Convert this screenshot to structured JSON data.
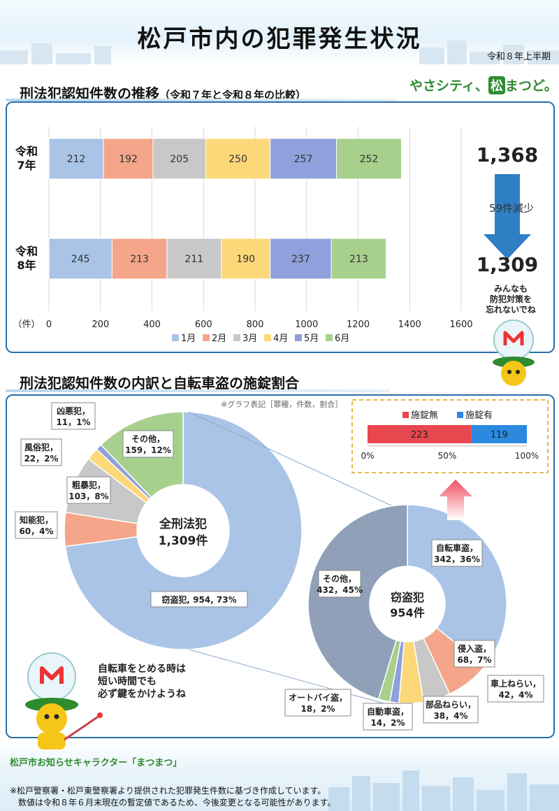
{
  "header": {
    "title": "松戸市内の犯罪発生状況",
    "period": "令和８年上半期",
    "slogan_pre": "やさシティ、",
    "slogan_pine": "松",
    "slogan_post": "まつど。"
  },
  "section1": {
    "title": "刑法犯認知件数の推移",
    "subtitle": "（令和７年と令和８年の比較）"
  },
  "section2": {
    "title": "刑法犯認知件数の内訳と自転車盗の施錠割合",
    "graph_note": "※グラフ表記［罪種，件数，割合］"
  },
  "balloons": {
    "top_lines": [
      "みんなも",
      "防犯対策を",
      "忘れないでね"
    ],
    "bottom_lines": [
      "自転車をとめる時は",
      "短い時間でも",
      "必ず鍵をかけようね"
    ]
  },
  "footer": {
    "character": "松戸市お知らせキャラクター「まつまつ」",
    "note1": "※松戸警察署・松戸東警察署より提供された犯罪発生件数に基づき作成しています。",
    "note2": "　数値は令和８年６月末現在の暫定値であるため、今後変更となる可能性があります。"
  },
  "colors": {
    "jan": "#a9c4e6",
    "feb": "#f4a58a",
    "mar": "#c8c8c8",
    "apr": "#fdd879",
    "may": "#8fa1dc",
    "jun": "#a7d08c",
    "frame": "#2b6ea8",
    "arrow": "#2f7fc4",
    "unlocked": "#e8474f",
    "locked": "#2b8ae0"
  },
  "chart_data": [
    {
      "type": "bar",
      "orientation": "horizontal-stacked",
      "categories": [
        "令和\n7年",
        "令和\n8年"
      ],
      "series": [
        {
          "name": "1月",
          "values": [
            212,
            245
          ]
        },
        {
          "name": "2月",
          "values": [
            192,
            213
          ]
        },
        {
          "name": "3月",
          "values": [
            205,
            211
          ]
        },
        {
          "name": "4月",
          "values": [
            250,
            190
          ]
        },
        {
          "name": "5月",
          "values": [
            257,
            237
          ]
        },
        {
          "name": "6月",
          "values": [
            252,
            213
          ]
        }
      ],
      "xlim": [
        0,
        1600
      ],
      "xticks": [
        0,
        200,
        400,
        600,
        800,
        1000,
        1200,
        1400,
        1600
      ],
      "unit_label": "（件）",
      "legend": "bottom",
      "totals": [
        "1,368",
        "1,309"
      ],
      "change_label": "59件減少",
      "grid": true
    },
    {
      "type": "pie",
      "style": "donut",
      "center_lines": [
        "全刑法犯",
        "1,309件"
      ],
      "slices": [
        {
          "label": "窃盗犯",
          "value": 954,
          "pct": "73%",
          "text": "窃盗犯, 954, 73%"
        },
        {
          "label": "知能犯",
          "value": 60,
          "pct": "4%",
          "text": "60, 4%"
        },
        {
          "label": "粗暴犯",
          "value": 103,
          "pct": "8%",
          "text": "103, 8%"
        },
        {
          "label": "風俗犯",
          "value": 22,
          "pct": "2%",
          "text": "22, 2%"
        },
        {
          "label": "凶悪犯",
          "value": 11,
          "pct": "1%",
          "text": "11, 1%"
        },
        {
          "label": "その他",
          "value": 159,
          "pct": "12%",
          "text": "159, 12%"
        }
      ]
    },
    {
      "type": "pie",
      "style": "donut",
      "center_lines": [
        "窃盗犯",
        "954件"
      ],
      "slices": [
        {
          "label": "自転車盗",
          "value": 342,
          "pct": "36%",
          "text": "342, 36%"
        },
        {
          "label": "侵入盗",
          "value": 68,
          "pct": "7%",
          "text": "68, 7%"
        },
        {
          "label": "車上ねらい",
          "value": 42,
          "pct": "4%",
          "text": "42, 4%"
        },
        {
          "label": "部品ねらい",
          "value": 38,
          "pct": "4%",
          "text": "38, 4%"
        },
        {
          "label": "自動車盗",
          "value": 14,
          "pct": "2%",
          "text": "14, 2%"
        },
        {
          "label": "オートバイ盗",
          "value": 18,
          "pct": "2%",
          "text": "18, 2%"
        },
        {
          "label": "その他",
          "value": 432,
          "pct": "45%",
          "text": "432, 45%"
        }
      ]
    },
    {
      "type": "bar",
      "orientation": "horizontal-stacked-100",
      "series": [
        {
          "name": "施錠無",
          "value": 223
        },
        {
          "name": "施錠有",
          "value": 119
        }
      ],
      "xticks": [
        "0%",
        "50%",
        "100%"
      ],
      "legend": "top"
    }
  ]
}
